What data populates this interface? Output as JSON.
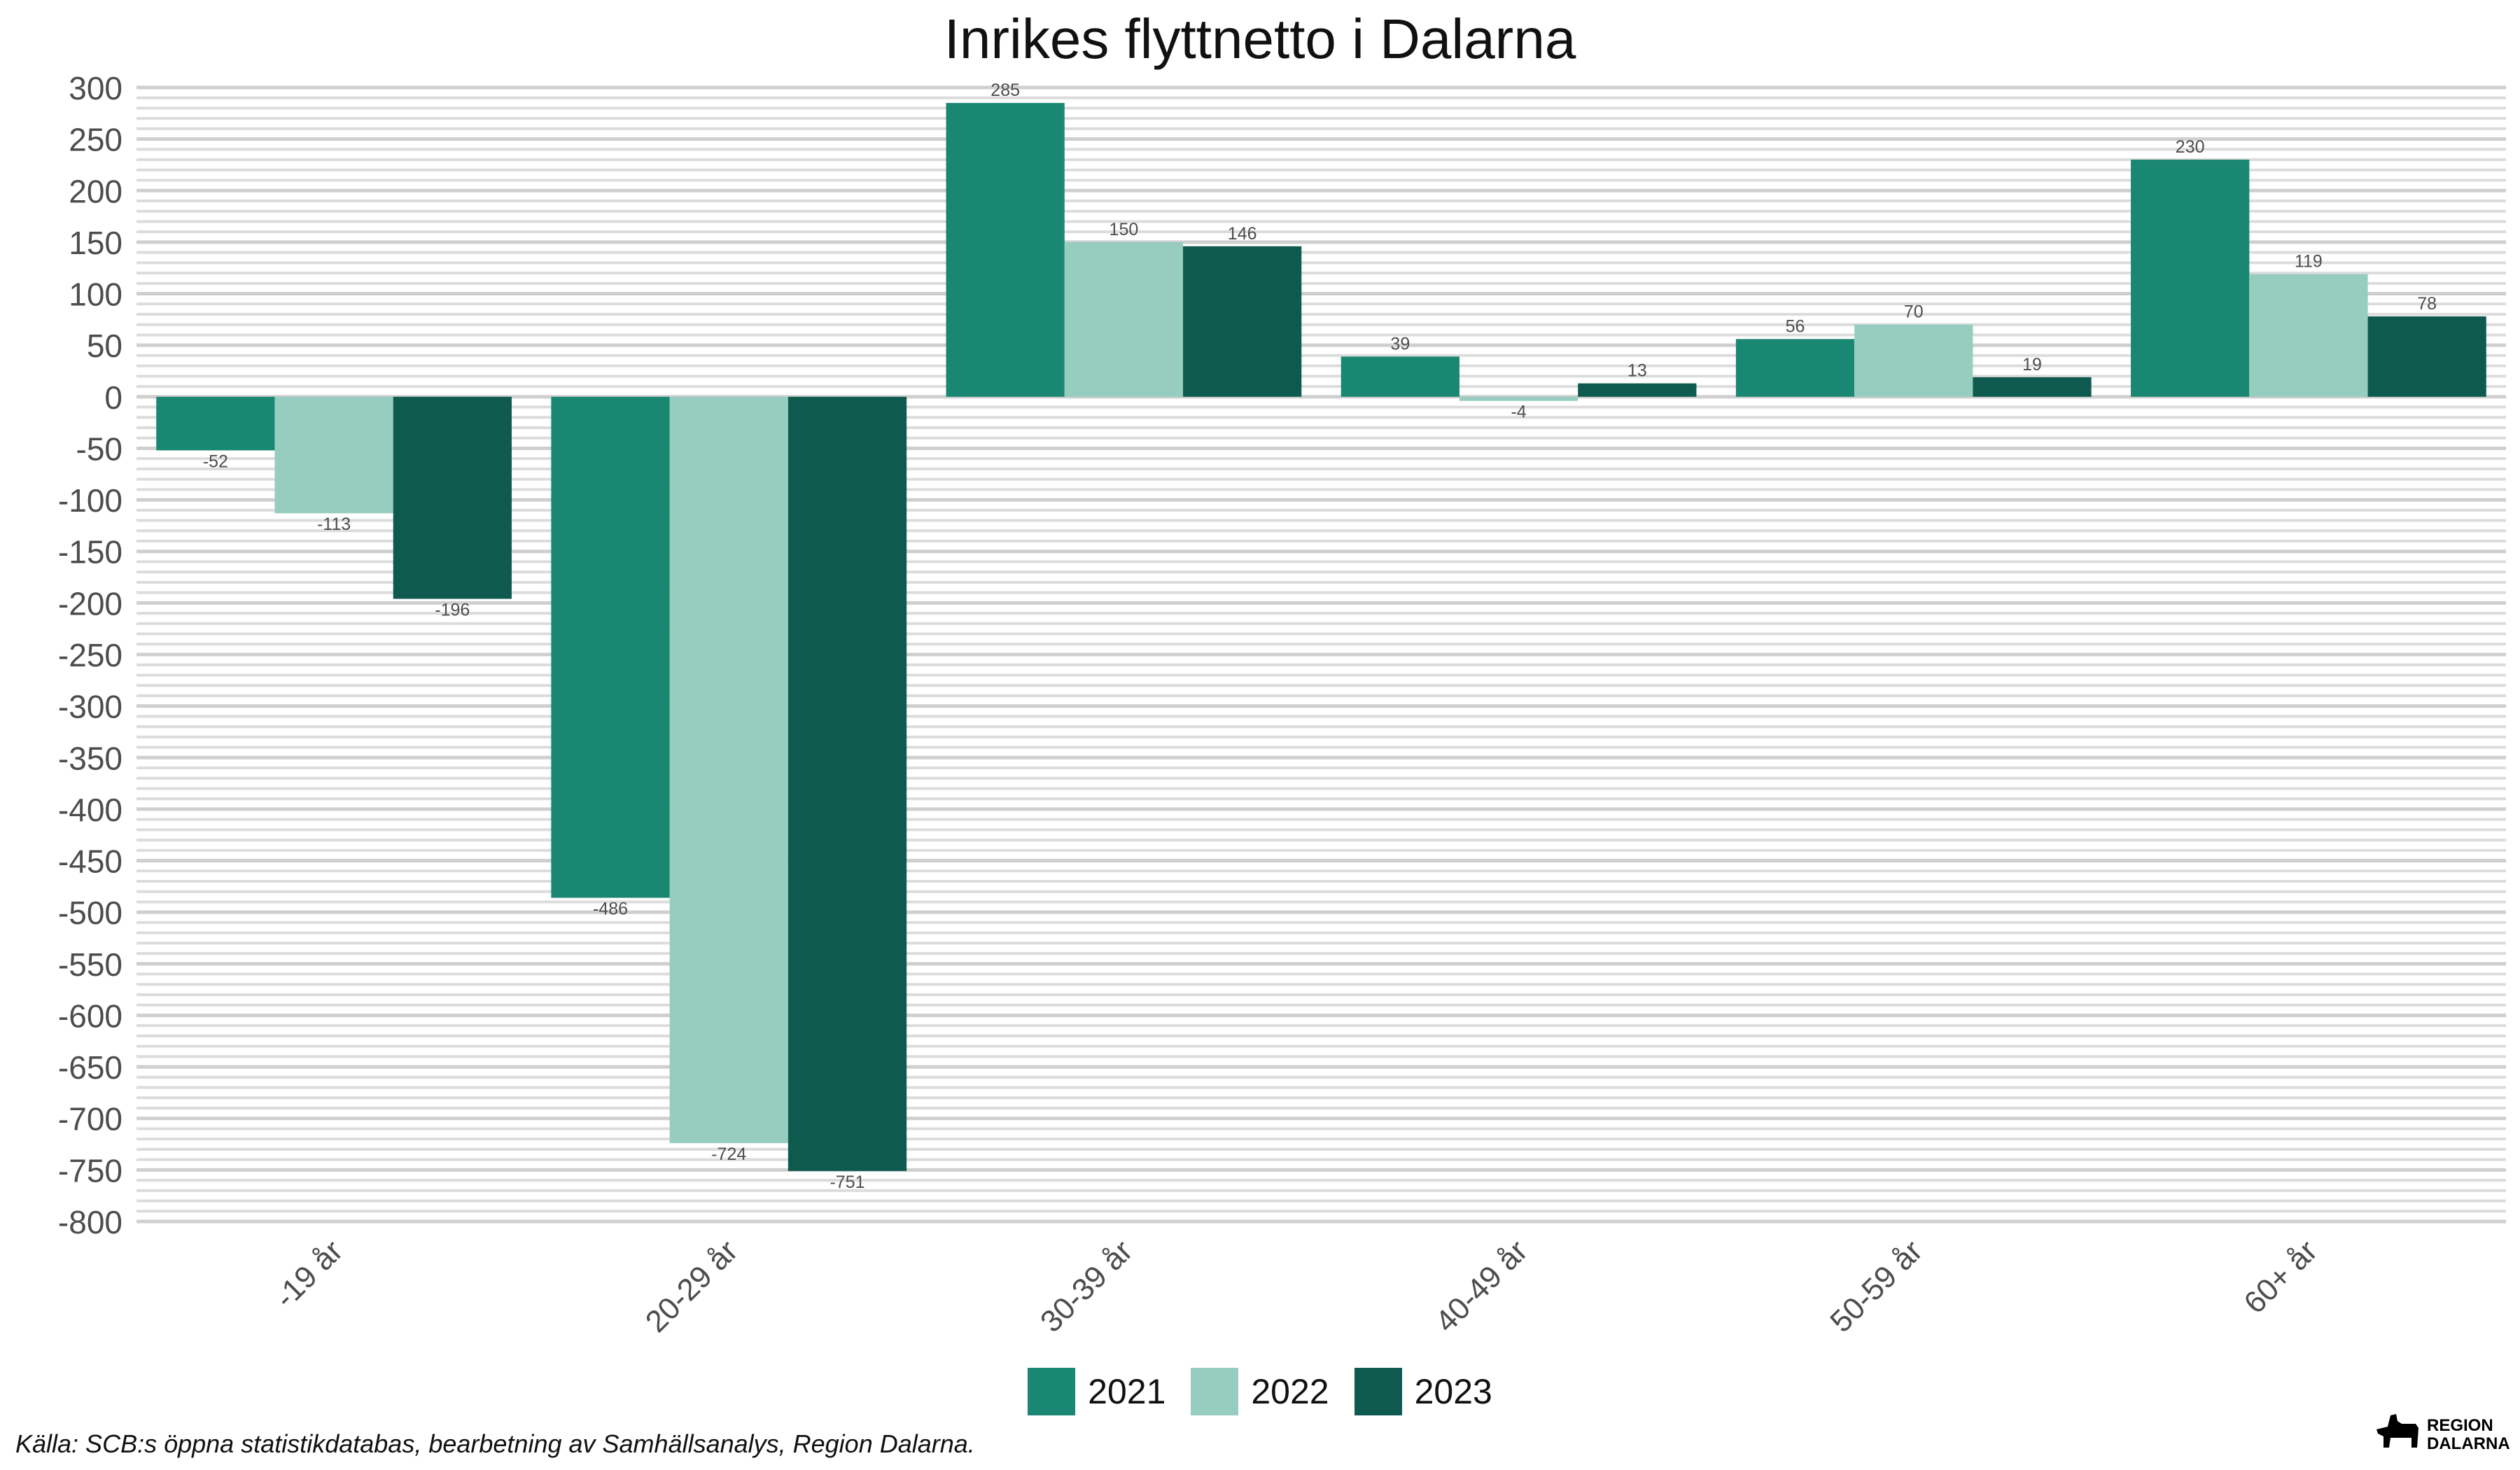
{
  "chart_data": {
    "type": "bar",
    "title": "Inrikes flyttnetto i Dalarna",
    "categories": [
      "-19 år",
      "20-29 år",
      "30-39 år",
      "40-49 år",
      "50-59 år",
      "60+ år"
    ],
    "series": [
      {
        "name": "2021",
        "color": "#1a8773",
        "values": [
          -52,
          -486,
          285,
          39,
          56,
          230
        ]
      },
      {
        "name": "2022",
        "color": "#96cdbf",
        "values": [
          -113,
          -724,
          150,
          -4,
          70,
          119
        ]
      },
      {
        "name": "2023",
        "color": "#0e5a4e",
        "values": [
          -196,
          -751,
          146,
          13,
          19,
          78
        ]
      }
    ],
    "ylim": [
      -800,
      300
    ],
    "yticks": [
      300,
      250,
      200,
      150,
      100,
      50,
      0,
      -50,
      -100,
      -150,
      -200,
      -250,
      -300,
      -350,
      -400,
      -450,
      -500,
      -550,
      -600,
      -650,
      -700,
      -750,
      -800
    ],
    "data_labels": true,
    "grid": true,
    "legend_position": "bottom",
    "xlabel": "",
    "ylabel": ""
  },
  "caption": "Källa: SCB:s öppna statistikdatabas, bearbetning av Samhällsanalys, Region Dalarna.",
  "logo": {
    "line1": "REGION",
    "line2": "DALARNA"
  }
}
